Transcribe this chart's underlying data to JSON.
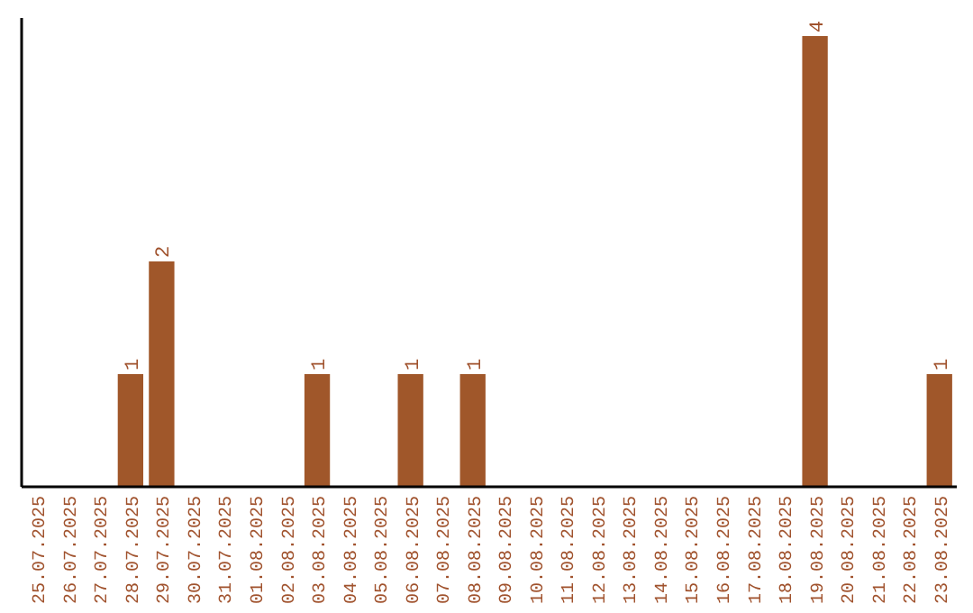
{
  "chart_data": {
    "type": "bar",
    "categories": [
      "25.07.2025",
      "26.07.2025",
      "27.07.2025",
      "28.07.2025",
      "29.07.2025",
      "30.07.2025",
      "31.07.2025",
      "01.08.2025",
      "02.08.2025",
      "03.08.2025",
      "04.08.2025",
      "05.08.2025",
      "06.08.2025",
      "07.08.2025",
      "08.08.2025",
      "09.08.2025",
      "10.08.2025",
      "11.08.2025",
      "12.08.2025",
      "13.08.2025",
      "14.08.2025",
      "15.08.2025",
      "16.08.2025",
      "17.08.2025",
      "18.08.2025",
      "19.08.2025",
      "20.08.2025",
      "21.08.2025",
      "22.08.2025",
      "23.08.2025"
    ],
    "values": [
      0,
      0,
      0,
      1,
      2,
      0,
      0,
      0,
      0,
      1,
      0,
      0,
      1,
      0,
      1,
      0,
      0,
      0,
      0,
      0,
      0,
      0,
      0,
      0,
      0,
      4,
      0,
      0,
      0,
      1
    ],
    "value_labels": [
      null,
      null,
      null,
      "1",
      "2",
      null,
      null,
      null,
      null,
      "1",
      null,
      null,
      "1",
      null,
      "1",
      null,
      null,
      null,
      null,
      null,
      null,
      null,
      null,
      null,
      null,
      "4",
      null,
      null,
      null,
      "1"
    ],
    "color": "#a0572a",
    "ylim": [
      0,
      4.16
    ],
    "tick_labels": "x"
  }
}
